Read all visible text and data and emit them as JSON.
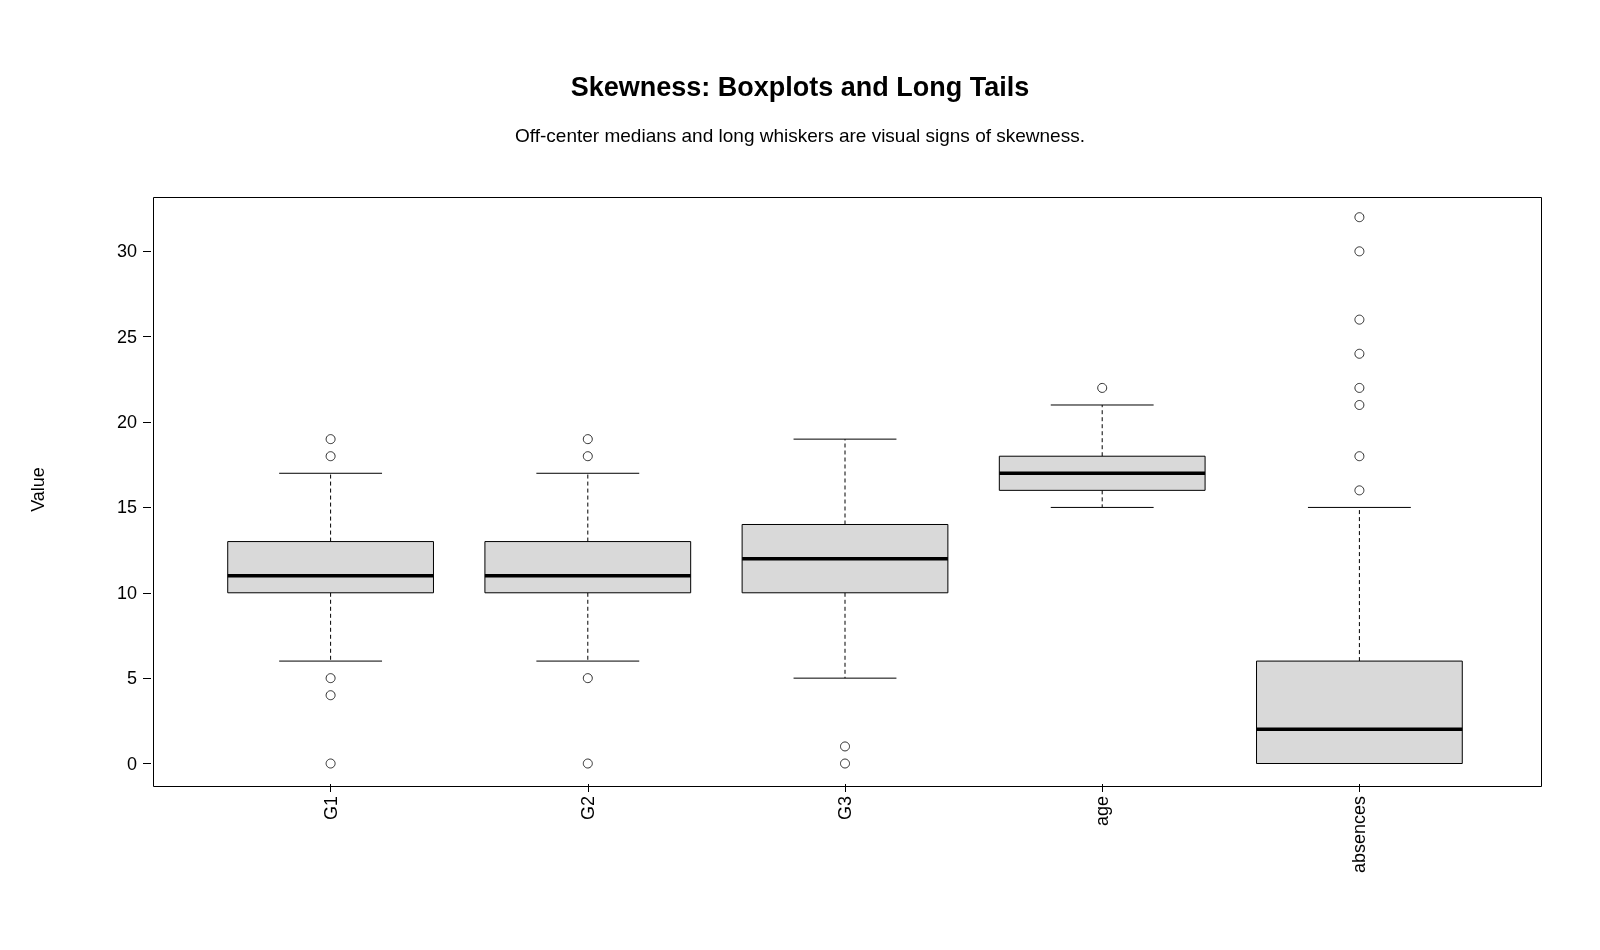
{
  "chart_data": {
    "type": "box",
    "title": "Skewness: Boxplots and Long Tails",
    "subtitle": "Off-center medians and long whiskers are visual signs of skewness.",
    "ylabel": "Value",
    "categories": [
      "G1",
      "G2",
      "G3",
      "age",
      "absences"
    ],
    "color": "#d9d9d9",
    "boxes": [
      {
        "low": 6,
        "q1": 10,
        "median": 11,
        "q3": 13,
        "high": 17,
        "outliers": [
          0,
          4,
          5,
          18,
          19
        ]
      },
      {
        "low": 6,
        "q1": 10,
        "median": 11,
        "q3": 13,
        "high": 17,
        "outliers": [
          0,
          5,
          18,
          19
        ]
      },
      {
        "low": 5,
        "q1": 10,
        "median": 12,
        "q3": 14,
        "high": 19,
        "outliers": [
          0,
          1
        ]
      },
      {
        "low": 15,
        "q1": 16,
        "median": 17,
        "q3": 18,
        "high": 21,
        "outliers": [
          22
        ]
      },
      {
        "low": 0,
        "q1": 0,
        "median": 2,
        "q3": 6,
        "high": 15,
        "outliers": [
          16,
          18,
          21,
          22,
          24,
          26,
          30,
          32
        ]
      }
    ],
    "ylim": [
      -1.2,
      33.3
    ],
    "yticks": [
      0,
      5,
      10,
      15,
      20,
      25,
      30
    ]
  }
}
